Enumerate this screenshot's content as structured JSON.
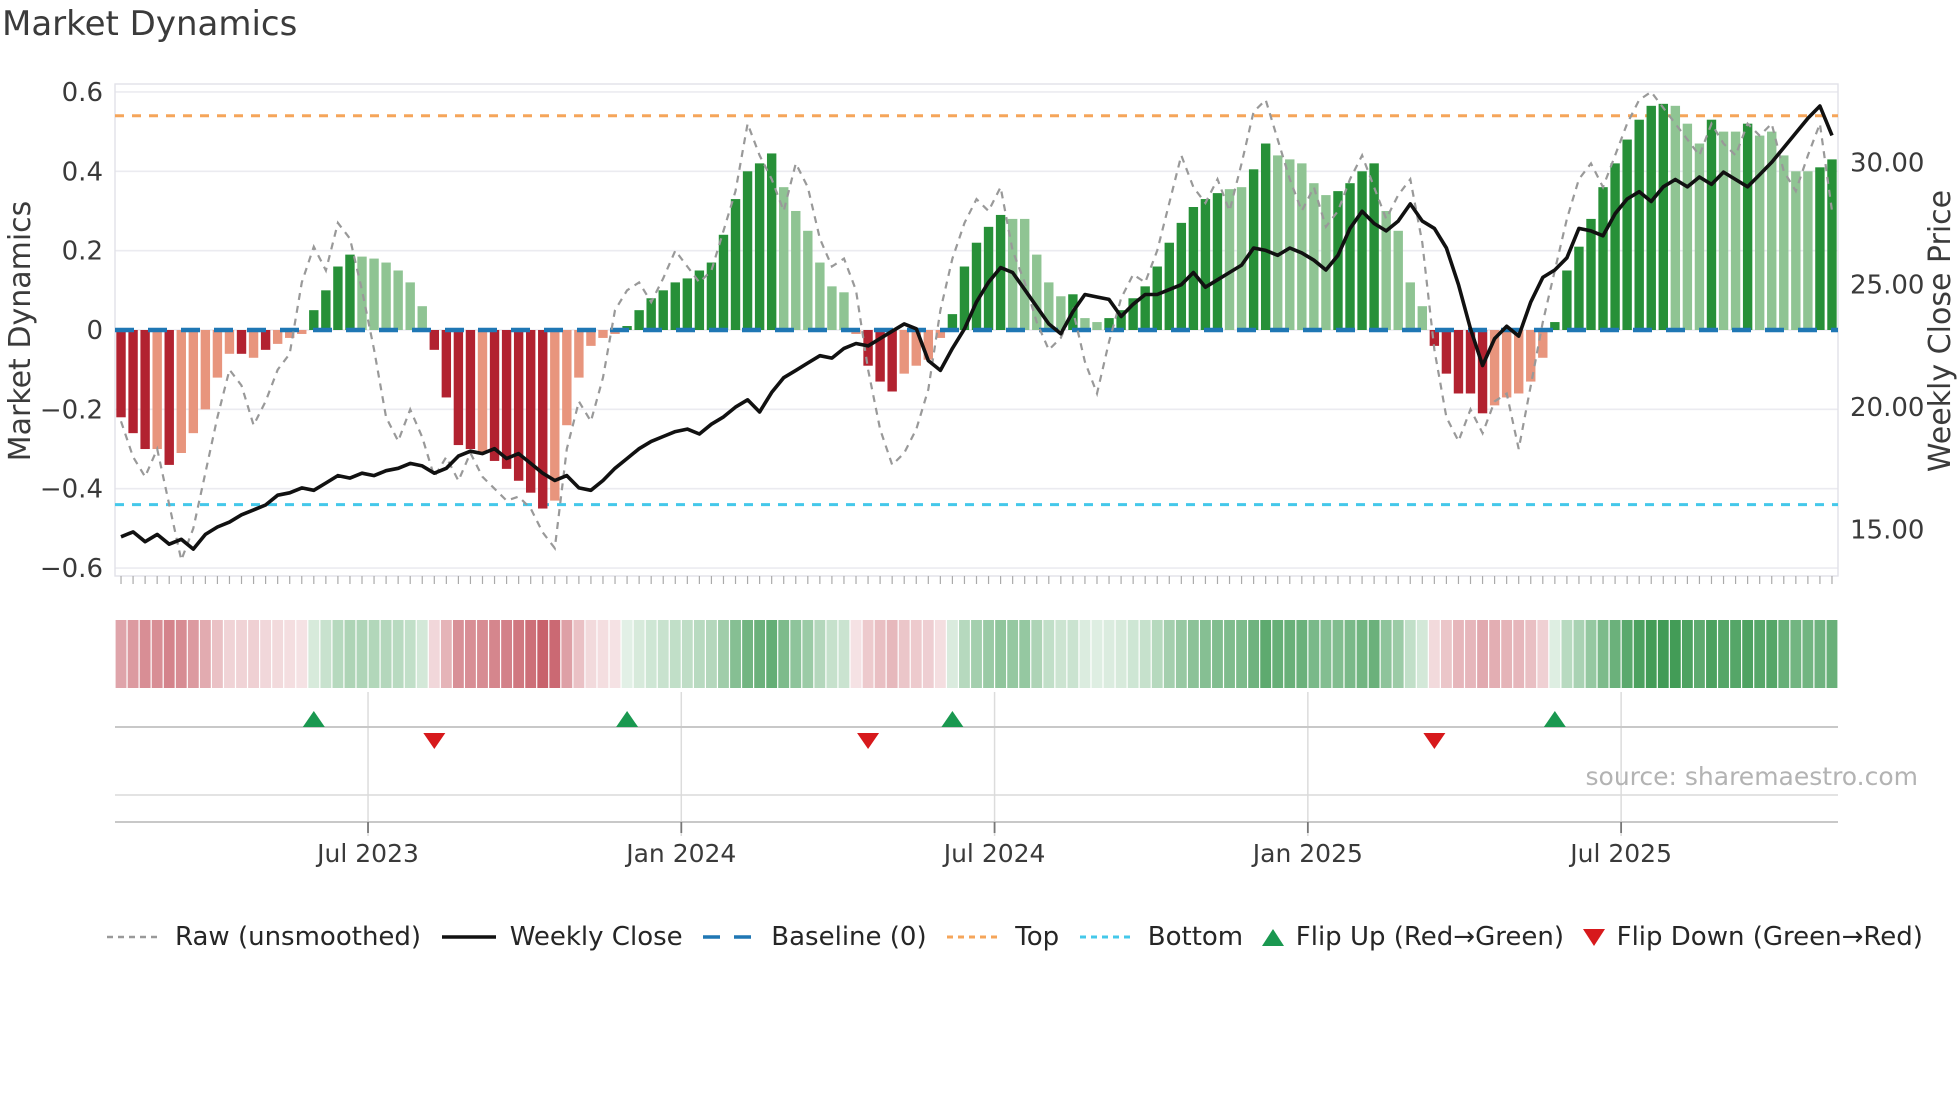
{
  "title": "Market Dynamics",
  "left_axis_label": "Market Dynamics",
  "right_axis_label": "Weekly Close Price",
  "source_text": "source: sharemaestro.com",
  "legend": {
    "raw": "Raw (unsmoothed)",
    "close": "Weekly Close",
    "baseline": "Baseline (0)",
    "top": "Top",
    "bottom": "Bottom",
    "flip_up": "Flip Up (Red→Green)",
    "flip_down": "Flip Down (Green→Red)"
  },
  "colors": {
    "bar_dark_red": "#b22230",
    "bar_light_red": "#e8957d",
    "bar_dark_green": "#279038",
    "bar_light_green": "#8fc493",
    "heat_red": "#b22230",
    "heat_green": "#228b3a",
    "raw_line": "#999999",
    "close_line": "#111111",
    "baseline": "#1f77b4",
    "top_line": "#f5a55a",
    "bottom_line": "#44c8ea",
    "flip_up": "#1a9850",
    "flip_down": "#d7191c",
    "grid": "#ebebf0",
    "frame": "#e2e2e8",
    "tick_text": "#3a3a3a",
    "panel_line": "#c8c8c8"
  },
  "chart_data": {
    "type": "combo (weekly oscillator bars + raw dashed line on left axis, weekly close line on right axis, heatmap strip and flip markers below)",
    "n_weeks": 143,
    "osc_axis": {
      "min": -0.62,
      "max": 0.62,
      "ticks": [
        0.6,
        0.4,
        0.2,
        0,
        -0.2,
        -0.4,
        -0.6
      ],
      "tick_labels": [
        "0.6",
        "0.4",
        "0.2",
        "0",
        "−0.2",
        "−0.4",
        "−0.6"
      ]
    },
    "price_axis": {
      "min": 13.1,
      "max": 33.2,
      "ticks": [
        30,
        25,
        20,
        15
      ],
      "tick_labels": [
        "30.00",
        "25.00",
        "20.00",
        "15.00"
      ]
    },
    "xticks": [
      {
        "label": "Jul 2023",
        "week": 20.5
      },
      {
        "label": "Jan 2024",
        "week": 46.5
      },
      {
        "label": "Jul 2024",
        "week": 72.5
      },
      {
        "label": "Jan 2025",
        "week": 98.5
      },
      {
        "label": "Jul 2025",
        "week": 124.5
      }
    ],
    "top_line": 0.54,
    "bottom_line": -0.44,
    "baseline": 0,
    "flip_up_weeks": [
      16,
      42,
      69,
      119
    ],
    "flip_down_weeks": [
      26,
      62,
      109
    ],
    "oscillator": {
      "shade": "DDDLDLLLLLDLDLLLDDDDLLLLLLDDDDLDDDDDLLLLLLDDDDDDDDDDDDDLLLLLLLDDDLLLLDDDDDLLLLLDLLDDDDDDDDDDLLDDLLLLLDDDDLLLLDDDDDLLLLLDDDDDDDDDDLLLDLLDLLLLLDD",
      "values": [
        -0.22,
        -0.26,
        -0.3,
        -0.3,
        -0.34,
        -0.31,
        -0.26,
        -0.2,
        -0.12,
        -0.06,
        -0.06,
        -0.07,
        -0.05,
        -0.035,
        -0.02,
        -0.01,
        0.05,
        0.1,
        0.16,
        0.19,
        0.185,
        0.18,
        0.17,
        0.15,
        0.12,
        0.06,
        -0.05,
        -0.17,
        -0.29,
        -0.3,
        -0.31,
        -0.33,
        -0.35,
        -0.38,
        -0.41,
        -0.45,
        -0.43,
        -0.24,
        -0.12,
        -0.04,
        -0.02,
        -0.01,
        0.01,
        0.05,
        0.08,
        0.1,
        0.12,
        0.13,
        0.15,
        0.17,
        0.24,
        0.33,
        0.4,
        0.42,
        0.445,
        0.36,
        0.3,
        0.25,
        0.17,
        0.11,
        0.095,
        -0.01,
        -0.09,
        -0.13,
        -0.155,
        -0.11,
        -0.09,
        -0.075,
        -0.02,
        0.04,
        0.16,
        0.22,
        0.26,
        0.29,
        0.28,
        0.28,
        0.19,
        0.12,
        0.085,
        0.09,
        0.03,
        0.02,
        0.03,
        0.05,
        0.08,
        0.11,
        0.16,
        0.22,
        0.27,
        0.31,
        0.33,
        0.345,
        0.355,
        0.36,
        0.405,
        0.47,
        0.44,
        0.43,
        0.42,
        0.37,
        0.34,
        0.35,
        0.37,
        0.4,
        0.42,
        0.3,
        0.25,
        0.12,
        0.06,
        -0.04,
        -0.11,
        -0.16,
        -0.16,
        -0.21,
        -0.19,
        -0.17,
        -0.16,
        -0.13,
        -0.07,
        0.02,
        0.15,
        0.21,
        0.28,
        0.36,
        0.42,
        0.48,
        0.53,
        0.565,
        0.57,
        0.565,
        0.52,
        0.47,
        0.53,
        0.5,
        0.5,
        0.52,
        0.49,
        0.5,
        0.44,
        0.4,
        0.4,
        0.41,
        0.43
      ]
    },
    "raw": [
      -0.23,
      -0.32,
      -0.37,
      -0.3,
      -0.44,
      -0.58,
      -0.5,
      -0.36,
      -0.22,
      -0.1,
      -0.14,
      -0.24,
      -0.18,
      -0.1,
      -0.06,
      0.12,
      0.21,
      0.15,
      0.27,
      0.23,
      0.1,
      -0.05,
      -0.22,
      -0.28,
      -0.2,
      -0.27,
      -0.37,
      -0.32,
      -0.38,
      -0.31,
      -0.37,
      -0.4,
      -0.43,
      -0.42,
      -0.45,
      -0.51,
      -0.55,
      -0.3,
      -0.18,
      -0.23,
      -0.12,
      0.05,
      0.1,
      0.12,
      0.07,
      0.13,
      0.2,
      0.16,
      0.12,
      0.15,
      0.25,
      0.35,
      0.52,
      0.44,
      0.38,
      0.3,
      0.42,
      0.36,
      0.23,
      0.16,
      0.18,
      0.1,
      -0.1,
      -0.25,
      -0.34,
      -0.31,
      -0.25,
      -0.15,
      0.05,
      0.18,
      0.27,
      0.33,
      0.3,
      0.36,
      0.2,
      0.12,
      0.02,
      -0.05,
      -0.02,
      0.05,
      -0.08,
      -0.16,
      -0.03,
      0.08,
      0.14,
      0.12,
      0.2,
      0.32,
      0.44,
      0.36,
      0.32,
      0.38,
      0.3,
      0.42,
      0.55,
      0.58,
      0.48,
      0.38,
      0.3,
      0.36,
      0.26,
      0.3,
      0.38,
      0.44,
      0.36,
      0.28,
      0.34,
      0.38,
      0.22,
      -0.05,
      -0.22,
      -0.28,
      -0.2,
      -0.26,
      -0.18,
      -0.16,
      -0.3,
      -0.14,
      0.02,
      0.15,
      0.28,
      0.38,
      0.42,
      0.36,
      0.44,
      0.52,
      0.58,
      0.6,
      0.56,
      0.52,
      0.48,
      0.44,
      0.52,
      0.47,
      0.44,
      0.52,
      0.49,
      0.52,
      0.4,
      0.35,
      0.44,
      0.52,
      0.3
    ],
    "weekly_close": [
      14.7,
      14.9,
      14.5,
      14.8,
      14.4,
      14.6,
      14.2,
      14.8,
      15.1,
      15.3,
      15.6,
      15.8,
      16.0,
      16.4,
      16.5,
      16.7,
      16.6,
      16.9,
      17.2,
      17.1,
      17.3,
      17.2,
      17.4,
      17.5,
      17.7,
      17.6,
      17.3,
      17.5,
      18.0,
      18.2,
      18.1,
      18.3,
      17.9,
      18.1,
      17.7,
      17.3,
      17.0,
      17.2,
      16.7,
      16.6,
      17.0,
      17.5,
      17.9,
      18.3,
      18.6,
      18.8,
      19.0,
      19.1,
      18.9,
      19.3,
      19.6,
      20.0,
      20.3,
      19.8,
      20.6,
      21.2,
      21.5,
      21.8,
      22.1,
      22.0,
      22.4,
      22.6,
      22.5,
      22.8,
      23.1,
      23.4,
      23.2,
      21.9,
      21.5,
      22.4,
      23.2,
      24.3,
      25.1,
      25.7,
      25.5,
      24.8,
      24.1,
      23.4,
      23.0,
      23.9,
      24.6,
      24.5,
      24.4,
      23.7,
      24.2,
      24.6,
      24.6,
      24.8,
      25.0,
      25.5,
      24.9,
      25.2,
      25.5,
      25.8,
      26.5,
      26.4,
      26.2,
      26.5,
      26.3,
      26.0,
      25.6,
      26.2,
      27.3,
      28.0,
      27.5,
      27.2,
      27.6,
      28.3,
      27.6,
      27.3,
      26.5,
      25.0,
      23.2,
      21.7,
      22.8,
      23.3,
      22.9,
      24.3,
      25.3,
      25.6,
      26.1,
      27.3,
      27.2,
      27.0,
      27.9,
      28.5,
      28.8,
      28.4,
      29.0,
      29.3,
      29.0,
      29.4,
      29.1,
      29.6,
      29.3,
      29.0,
      29.5,
      30.0,
      30.6,
      31.2,
      31.8,
      32.3,
      31.1
    ]
  }
}
